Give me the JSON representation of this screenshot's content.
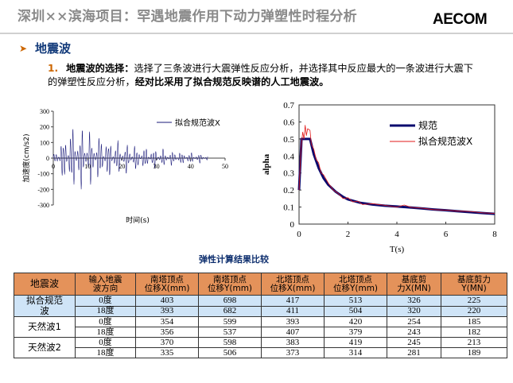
{
  "header": {
    "title": "深圳××滨海项目：罕遇地震作用下动力弹塑性时程分析",
    "logo": "AECOM"
  },
  "section": {
    "heading": "地震波"
  },
  "paragraph": {
    "number": "1.",
    "lead": "地震波的选择：",
    "body": "选择了三条波进行大震弹性反应分析，并选择其中反应最大的一条波进行大震下的弹塑性反应分析，",
    "emphasis": "经对比采用了拟合规范反映谱的人工地震波。"
  },
  "chart_data": [
    {
      "type": "line",
      "title": "",
      "xlabel": "时间(s)",
      "ylabel": "加速度(cm/s2)",
      "xlim": [
        0,
        50
      ],
      "ylim": [
        -300,
        300
      ],
      "x_ticks": [
        "0",
        "10",
        "20",
        "30",
        "40",
        "50"
      ],
      "y_ticks": [
        "300",
        "200",
        "100",
        "0",
        "-100",
        "-200",
        "-300"
      ],
      "legend_position": "top-right",
      "series": [
        {
          "name": "拟合规范波X",
          "color": "#1a1a7a",
          "envelope": [
            [
              0,
              20
            ],
            [
              2,
              120
            ],
            [
              4,
              215
            ],
            [
              6,
              255
            ],
            [
              8,
              230
            ],
            [
              10,
              210
            ],
            [
              12,
              185
            ],
            [
              15,
              160
            ],
            [
              18,
              130
            ],
            [
              22,
              105
            ],
            [
              26,
              85
            ],
            [
              30,
              70
            ],
            [
              34,
              55
            ],
            [
              38,
              45
            ],
            [
              42,
              35
            ],
            [
              45,
              25
            ]
          ]
        }
      ]
    },
    {
      "type": "line",
      "title": "",
      "xlabel": "T(s)",
      "ylabel": "alpha",
      "xlim": [
        0,
        8
      ],
      "ylim": [
        0,
        0.7
      ],
      "x_ticks": [
        "0",
        "2",
        "4",
        "6",
        "8"
      ],
      "y_ticks": [
        "0",
        "0.1",
        "0.2",
        "0.3",
        "0.4",
        "0.5",
        "0.6",
        "0.7"
      ],
      "legend_position": "top-right",
      "series": [
        {
          "name": "规范",
          "color": "#0a0a6e",
          "points": [
            [
              0,
              0.2
            ],
            [
              0.1,
              0.5
            ],
            [
              0.2,
              0.5
            ],
            [
              0.45,
              0.5
            ],
            [
              0.6,
              0.41
            ],
            [
              0.8,
              0.33
            ],
            [
              1.0,
              0.27
            ],
            [
              1.2,
              0.23
            ],
            [
              1.5,
              0.19
            ],
            [
              1.8,
              0.16
            ],
            [
              2.0,
              0.145
            ],
            [
              2.5,
              0.125
            ],
            [
              3.0,
              0.115
            ],
            [
              3.5,
              0.108
            ],
            [
              4.0,
              0.103
            ],
            [
              4.5,
              0.098
            ],
            [
              5.0,
              0.092
            ],
            [
              5.5,
              0.086
            ],
            [
              6.0,
              0.081
            ],
            [
              6.5,
              0.075
            ],
            [
              7.0,
              0.07
            ],
            [
              7.5,
              0.065
            ],
            [
              8.0,
              0.06
            ]
          ]
        },
        {
          "name": "拟合规范波X",
          "color": "#e21a1a",
          "points": [
            [
              0,
              0.2
            ],
            [
              0.08,
              0.45
            ],
            [
              0.15,
              0.54
            ],
            [
              0.2,
              0.5
            ],
            [
              0.25,
              0.58
            ],
            [
              0.3,
              0.52
            ],
            [
              0.35,
              0.56
            ],
            [
              0.45,
              0.55
            ],
            [
              0.5,
              0.47
            ],
            [
              0.6,
              0.44
            ],
            [
              0.7,
              0.38
            ],
            [
              0.8,
              0.36
            ],
            [
              0.9,
              0.3
            ],
            [
              1.0,
              0.29
            ],
            [
              1.2,
              0.24
            ],
            [
              1.4,
              0.2
            ],
            [
              1.6,
              0.18
            ],
            [
              1.8,
              0.15
            ],
            [
              2.0,
              0.155
            ],
            [
              2.2,
              0.13
            ],
            [
              2.4,
              0.135
            ],
            [
              2.6,
              0.115
            ],
            [
              3.0,
              0.12
            ],
            [
              3.5,
              0.11
            ],
            [
              4.0,
              0.1
            ],
            [
              4.3,
              0.112
            ],
            [
              4.6,
              0.098
            ],
            [
              5.0,
              0.094
            ],
            [
              5.5,
              0.085
            ],
            [
              6.0,
              0.082
            ],
            [
              6.5,
              0.076
            ],
            [
              7.0,
              0.074
            ],
            [
              7.5,
              0.066
            ],
            [
              8.0,
              0.063
            ]
          ]
        }
      ]
    }
  ],
  "table": {
    "title": "弹性计算结果比较",
    "headers": [
      "地震波",
      "输入地震波方向",
      "南塔顶点位移X(mm)",
      "南塔顶点位移Y(mm)",
      "北塔顶点位移X(mm)",
      "北塔顶点位移Y(mm)",
      "基底剪力X(MN)",
      "基底剪力Y(MN)"
    ],
    "header_lines": [
      [
        "地震波"
      ],
      [
        "输入地震",
        "波方向"
      ],
      [
        "南塔顶点",
        "位移X(mm)"
      ],
      [
        "南塔顶点",
        "位移Y(mm)"
      ],
      [
        "北塔顶点",
        "位移X(mm)"
      ],
      [
        "北塔顶点",
        "位移Y(mm)"
      ],
      [
        "基底剪",
        "力X(MN)"
      ],
      [
        "基底剪力",
        "Y(MN)"
      ]
    ],
    "groups": [
      {
        "wave_lines": [
          "拟合规范",
          "波"
        ],
        "rows": [
          [
            "0度",
            "403",
            "698",
            "417",
            "513",
            "326",
            "225"
          ],
          [
            "18度",
            "393",
            "682",
            "411",
            "504",
            "320",
            "220"
          ]
        ]
      },
      {
        "wave_lines": [
          "天然波1"
        ],
        "rows": [
          [
            "0度",
            "354",
            "599",
            "393",
            "420",
            "254",
            "185"
          ],
          [
            "18度",
            "356",
            "537",
            "407",
            "379",
            "243",
            "182"
          ]
        ]
      },
      {
        "wave_lines": [
          "天然波2"
        ],
        "rows": [
          [
            "0度",
            "370",
            "598",
            "383",
            "419",
            "245",
            "213"
          ],
          [
            "18度",
            "335",
            "506",
            "373",
            "314",
            "281",
            "189"
          ]
        ]
      }
    ]
  }
}
